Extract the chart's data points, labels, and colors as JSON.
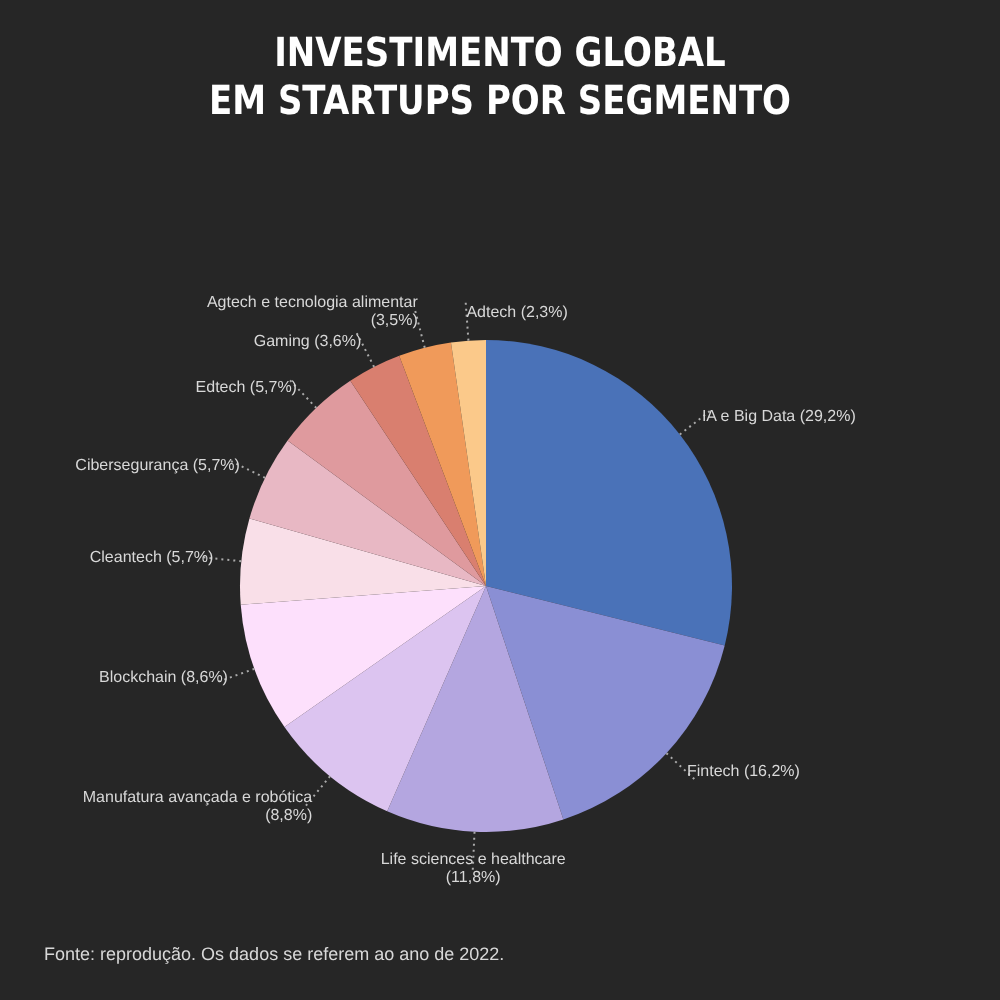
{
  "chart_data": {
    "type": "pie",
    "title": "INVESTIMENTO GLOBAL\nEM STARTUPS POR SEGMENTO",
    "categories": [
      "IA e Big Data",
      "Fintech",
      "Life sciences e  healthcare",
      "Manufatura avançada e robótica",
      "Blockchain",
      "Cleantech",
      "Cibersegurança",
      "Edtech",
      "Gaming",
      "Agtech  e tecnologia alimentar",
      "Adtech"
    ],
    "values": [
      29.2,
      16.2,
      11.8,
      8.8,
      8.6,
      5.7,
      5.7,
      5.7,
      3.6,
      3.5,
      2.3
    ],
    "value_labels": [
      "(29,2%)",
      "(16,2%)",
      "(11,8%)",
      "(8,8%)",
      "(8,6%)",
      "(5,7%)",
      "(5,7%)",
      "(5,7%)",
      "(3,6%)",
      "(3,5%)",
      "(2,3%)"
    ],
    "colors": [
      "#4a72b8",
      "#8a8fd4",
      "#b4a6e0",
      "#dcc4f0",
      "#fde0fc",
      "#f9dfe8",
      "#e8b8c4",
      "#df9a9e",
      "#d97f6f",
      "#f09a5a",
      "#fbc98a"
    ],
    "annotations": [
      "Fonte: reprodução. Os dados se referem ao ano de 2022."
    ]
  }
}
